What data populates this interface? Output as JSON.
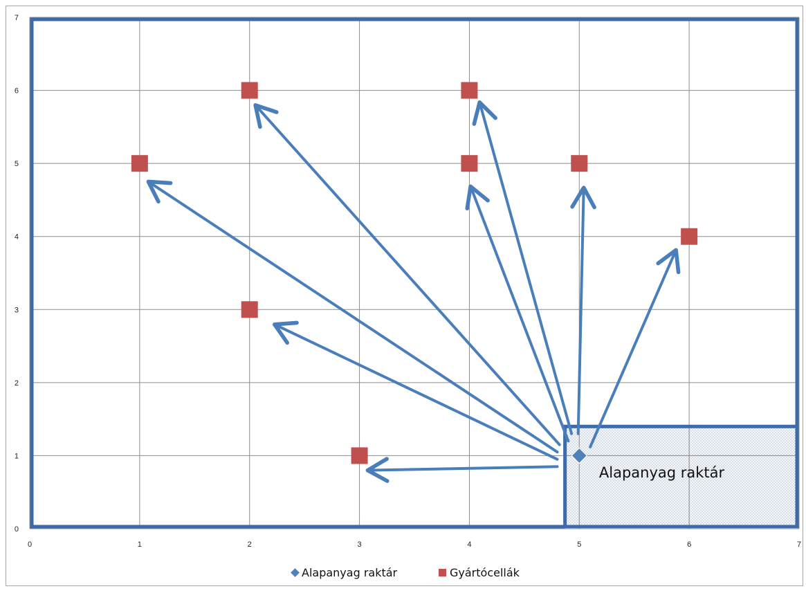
{
  "chart_data": {
    "type": "scatter",
    "title": "",
    "xlabel": "",
    "ylabel": "",
    "xlim": [
      0,
      7
    ],
    "ylim": [
      0,
      7
    ],
    "x_ticks": [
      "0",
      "1",
      "2",
      "3",
      "4",
      "5",
      "6",
      "7"
    ],
    "y_ticks": [
      "0",
      "1",
      "2",
      "3",
      "4",
      "5",
      "6",
      "7"
    ],
    "grid": true,
    "legend_position": "bottom",
    "series": [
      {
        "name": "Alapanyag raktár",
        "marker": "diamond",
        "color": "#4F81BD",
        "points": [
          {
            "x": 5,
            "y": 1
          }
        ]
      },
      {
        "name": "Gyártócellák",
        "marker": "square",
        "color": "#C0504D",
        "points": [
          {
            "x": 3,
            "y": 1
          },
          {
            "x": 2,
            "y": 3
          },
          {
            "x": 1,
            "y": 5
          },
          {
            "x": 2,
            "y": 6
          },
          {
            "x": 4,
            "y": 5
          },
          {
            "x": 4,
            "y": 6
          },
          {
            "x": 5,
            "y": 5
          },
          {
            "x": 6,
            "y": 4
          }
        ]
      }
    ],
    "annotations": {
      "warehouse_area_label": "Alapanyag raktár",
      "warehouse_area": {
        "x_from": 4.87,
        "x_to": 7,
        "y_from": 0,
        "y_to": 1.4
      },
      "arrows": [
        {
          "from": [
            4.8,
            0.85
          ],
          "to": [
            3.1,
            0.8
          ]
        },
        {
          "from": [
            4.8,
            0.95
          ],
          "to": [
            2.25,
            2.78
          ]
        },
        {
          "from": [
            4.8,
            1.05
          ],
          "to": [
            1.1,
            4.73
          ]
        },
        {
          "from": [
            4.82,
            1.15
          ],
          "to": [
            2.07,
            5.77
          ]
        },
        {
          "from": [
            4.9,
            1.2
          ],
          "to": [
            4.02,
            4.65
          ]
        },
        {
          "from": [
            4.93,
            1.3
          ],
          "to": [
            4.1,
            5.8
          ]
        },
        {
          "from": [
            4.99,
            1.3
          ],
          "to": [
            5.04,
            4.63
          ]
        },
        {
          "from": [
            5.1,
            1.12
          ],
          "to": [
            5.87,
            3.78
          ]
        }
      ]
    }
  }
}
